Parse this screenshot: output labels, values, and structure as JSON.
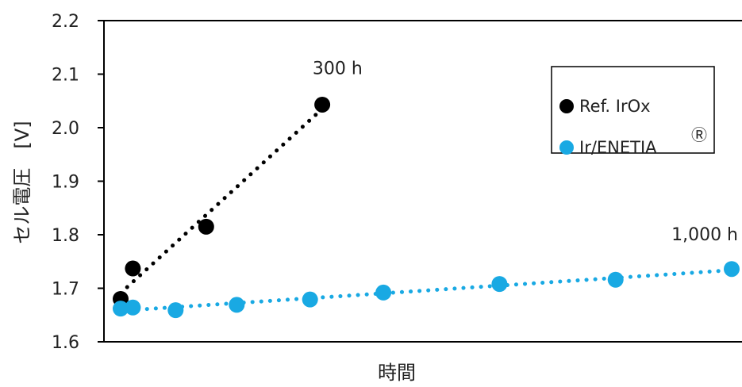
{
  "chart_data": {
    "type": "scatter",
    "xlabel": "時間",
    "ylabel": "セル電圧　[V]",
    "ylim": [
      1.6,
      2.2
    ],
    "yticks": [
      "1.6",
      "1.7",
      "1.8",
      "1.9",
      "2.0",
      "2.1",
      "2.2"
    ],
    "xlim": [
      0,
      1000
    ],
    "grid": false,
    "legend_position": "top-right",
    "series": [
      {
        "name": "Ref. IrOx",
        "color": "#000000",
        "trendline": "dotted",
        "points": [
          {
            "x": 0,
            "y": 1.68
          },
          {
            "x": 20,
            "y": 1.737
          },
          {
            "x": 140,
            "y": 1.815
          },
          {
            "x": 330,
            "y": 2.043
          }
        ]
      },
      {
        "name": "Ir/ENETIA",
        "name_suffix": "Ⓡ",
        "color": "#19a9e3",
        "trendline": "dotted",
        "points": [
          {
            "x": 0,
            "y": 1.662
          },
          {
            "x": 20,
            "y": 1.664
          },
          {
            "x": 90,
            "y": 1.659
          },
          {
            "x": 190,
            "y": 1.669
          },
          {
            "x": 310,
            "y": 1.679
          },
          {
            "x": 430,
            "y": 1.692
          },
          {
            "x": 620,
            "y": 1.708
          },
          {
            "x": 810,
            "y": 1.716
          },
          {
            "x": 1000,
            "y": 1.736
          }
        ]
      }
    ],
    "annotations": [
      {
        "text": "300 h",
        "x": 355,
        "y": 2.1
      },
      {
        "text": "1,000 h",
        "x": 945,
        "y": 1.79
      }
    ]
  }
}
